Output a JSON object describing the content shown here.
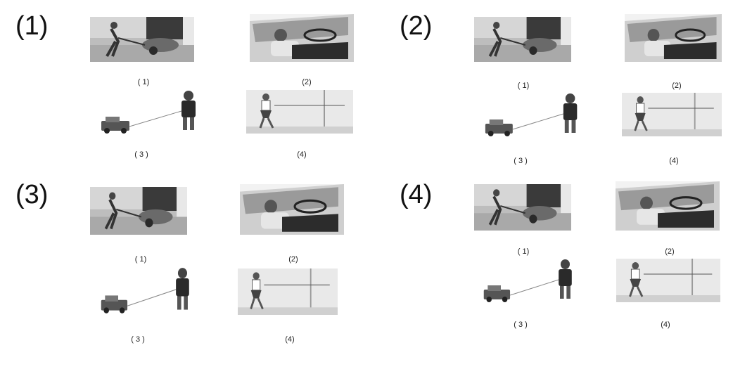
{
  "panels": [
    {
      "label": "(1)",
      "captions": [
        "( 1)",
        "(2)",
        "( 3 )",
        "(4)"
      ]
    },
    {
      "label": "(2)",
      "captions": [
        "( 1)",
        "(2)",
        "( 3 )",
        "(4)"
      ]
    },
    {
      "label": "(3)",
      "captions": [
        "( 1)",
        "(2)",
        "( 3 )",
        "(4)"
      ]
    },
    {
      "label": "(4)",
      "captions": [
        "( 1)",
        "(2)",
        "( 3 )",
        "(4)"
      ]
    }
  ],
  "images": {
    "1": "person-pushing-wheelbarrow",
    "2": "person-seated-in-car",
    "3": "boy-pulling-toy-truck",
    "4": "girl-pulling-rope-at-wall"
  }
}
